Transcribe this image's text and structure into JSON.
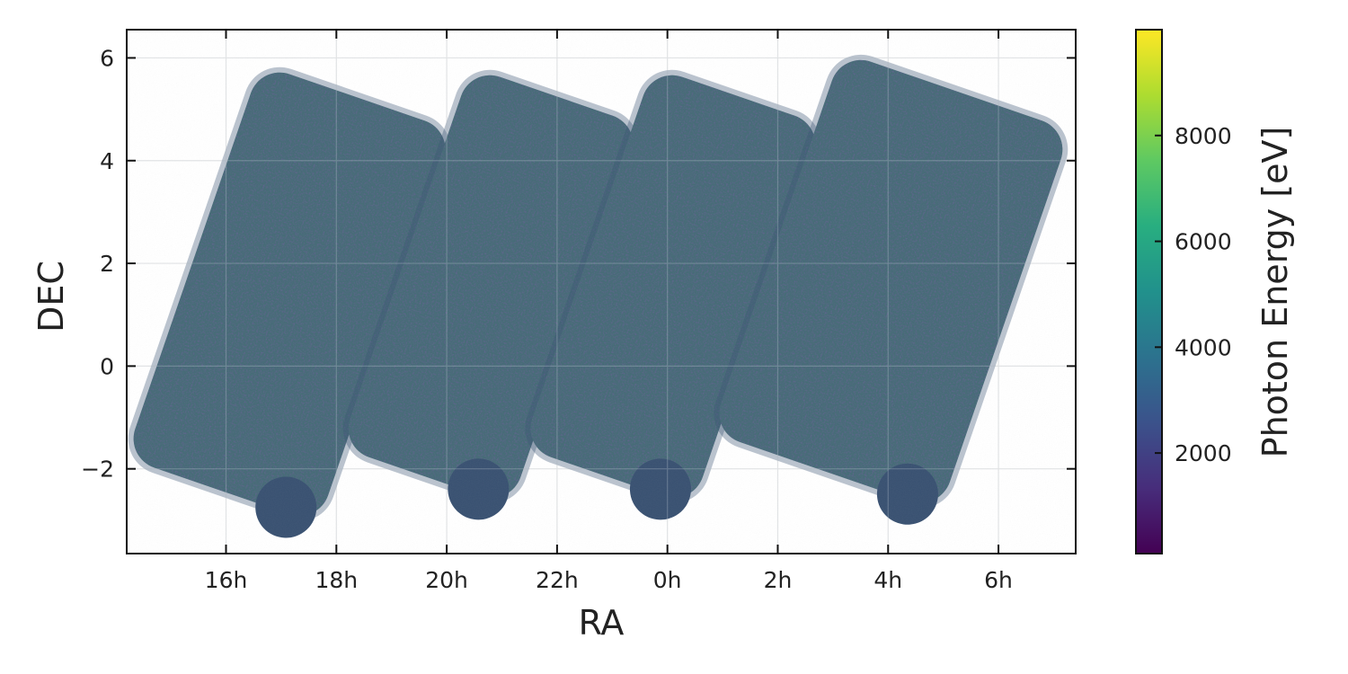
{
  "chart_data": {
    "type": "scatter",
    "title": "",
    "xlabel": "RA",
    "ylabel": "DEC",
    "x_ticks": [
      "16h",
      "18h",
      "20h",
      "22h",
      "0h",
      "2h",
      "4h",
      "6h"
    ],
    "x_tick_hours": [
      16,
      18,
      20,
      22,
      24,
      26,
      28,
      30
    ],
    "xlim_hours": [
      14.2,
      31.4
    ],
    "y_ticks": [
      "6",
      "4",
      "2",
      "0",
      "−2"
    ],
    "y_tick_values": [
      6,
      4,
      2,
      0,
      -2
    ],
    "ylim": [
      -3.65,
      6.55
    ],
    "grid": true,
    "colorbar": {
      "label": "Photon Energy [eV]",
      "ticks": [
        "2000",
        "4000",
        "6000",
        "8000"
      ],
      "tick_values": [
        2000,
        4000,
        6000,
        8000
      ],
      "range": [
        100,
        10000
      ],
      "colormap": "viridis"
    },
    "tiles": [
      {
        "name": "tile-1",
        "ra_range_hours": [
          15.0,
          19.3
        ],
        "dec_range": [
          -3.1,
          5.9
        ]
      },
      {
        "name": "tile-2",
        "ra_range_hours": [
          18.9,
          22.7
        ],
        "dec_range": [
          -2.8,
          5.9
        ]
      },
      {
        "name": "tile-3",
        "ra_range_hours": [
          22.2,
          26.0
        ],
        "dec_range": [
          -2.8,
          5.9
        ]
      },
      {
        "name": "tile-4",
        "ra_range_hours": [
          25.5,
          30.6
        ],
        "dec_range": [
          -2.7,
          6.0
        ]
      }
    ],
    "colors": {
      "field_base": "#3a5272",
      "field_green": "#5f9a82",
      "field_dark": "#2d1a5a",
      "viridis": [
        "#440154",
        "#472d7b",
        "#3b528b",
        "#2c728e",
        "#21918c",
        "#28ae80",
        "#5ec962",
        "#addc30",
        "#fde725"
      ]
    }
  }
}
